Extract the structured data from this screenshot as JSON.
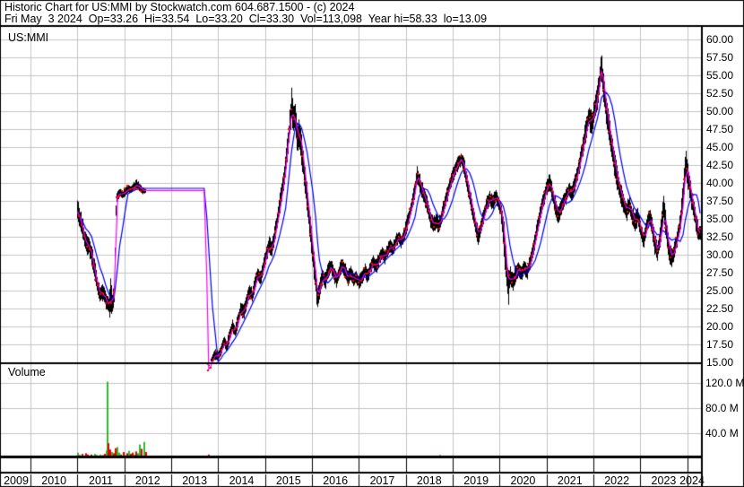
{
  "header": {
    "title_line": "Historic Chart for US:MMI by Stockwatch.com 604.687.1500 - (c) 2024",
    "quote_line": "Fri May  3 2024  Op=33.26  Hi=33.54  Lo=33.20  Cl=33.30  Vol=113,098  Year hi=58.33  lo=13.09"
  },
  "price_panel": {
    "label": "US:MMI"
  },
  "volume_panel": {
    "label": "Volume"
  },
  "colors": {
    "bar": "#000000",
    "ma_fast": "#ff00ff",
    "ma_slow": "#0000ee",
    "dot": "#ff0000",
    "vol_up": "#2db92d",
    "vol_down": "#e60000",
    "grid": "#c4c4c4",
    "border": "#000000",
    "background": "#ffffff"
  },
  "chart_data": {
    "type": "ohlc-line-volume",
    "title": "US:MMI",
    "price_axis_labels": [
      "60.00",
      "57.50",
      "55.00",
      "52.50",
      "50.00",
      "47.50",
      "45.00",
      "42.50",
      "40.00",
      "37.50",
      "35.00",
      "32.50",
      "30.00",
      "27.50",
      "25.00",
      "22.50",
      "20.00",
      "17.50",
      "15.00"
    ],
    "volume_axis_labels": [
      "120.0 M",
      "80.0 M",
      "40.0 M"
    ],
    "x_axis_labels": [
      "2009",
      "2010",
      "2011",
      "2012",
      "2013",
      "2014",
      "2015",
      "2016",
      "2017",
      "2018",
      "2019",
      "2020",
      "2021",
      "2022",
      "2023",
      "2024"
    ],
    "price_ylim": [
      15,
      60
    ],
    "volume_ylim_M": [
      0,
      140
    ],
    "ma_fast_window": 2,
    "ma_slow_window": 6,
    "price_points": [
      [
        2011.0,
        36.0,
        37.8,
        34.5
      ],
      [
        2011.06,
        34.5,
        36.5,
        33.5
      ],
      [
        2011.12,
        33.0,
        34.8,
        31.8
      ],
      [
        2011.18,
        31.0,
        33.2,
        30.0
      ],
      [
        2011.24,
        31.5,
        32.5,
        29.8
      ],
      [
        2011.3,
        29.5,
        31.5,
        28.5
      ],
      [
        2011.36,
        27.5,
        29.5,
        26.3
      ],
      [
        2011.42,
        25.5,
        27.2,
        24.3
      ],
      [
        2011.48,
        24.3,
        25.8,
        23.2
      ],
      [
        2011.54,
        24.8,
        26.0,
        23.5
      ],
      [
        2011.6,
        23.5,
        24.8,
        22.4
      ],
      [
        2011.66,
        22.8,
        24.2,
        21.6
      ],
      [
        2011.7,
        24.0,
        27.4,
        20.6
      ],
      [
        2011.74,
        23.2,
        24.6,
        22.0
      ],
      [
        2011.78,
        25.0,
        26.2,
        22.8
      ],
      [
        2011.82,
        37.8,
        38.6,
        36.8
      ],
      [
        2011.86,
        38.3,
        39.0,
        37.6
      ],
      [
        2011.9,
        38.6,
        39.2,
        38.0
      ],
      [
        2011.96,
        38.4,
        39.0,
        37.8
      ],
      [
        2012.02,
        38.8,
        39.5,
        38.2
      ],
      [
        2012.08,
        39.2,
        39.8,
        38.6
      ],
      [
        2012.14,
        39.0,
        39.6,
        38.4
      ],
      [
        2012.2,
        39.5,
        40.2,
        38.9
      ],
      [
        2012.26,
        39.8,
        40.6,
        39.2
      ],
      [
        2012.32,
        39.3,
        40.0,
        38.7
      ],
      [
        2012.38,
        39.0,
        39.5,
        38.4
      ],
      [
        2012.44,
        38.9,
        39.3,
        38.5
      ],
      [
        2013.76,
        14.2,
        15.0,
        13.7
      ],
      [
        2013.8,
        13.9,
        14.6,
        13.1
      ],
      [
        2013.84,
        14.8,
        15.5,
        13.9
      ],
      [
        2013.88,
        15.5,
        16.3,
        14.6
      ],
      [
        2013.94,
        16.2,
        17.0,
        15.3
      ],
      [
        2014.0,
        15.8,
        16.6,
        15.0
      ],
      [
        2014.06,
        16.8,
        17.6,
        16.0
      ],
      [
        2014.12,
        17.8,
        18.8,
        17.0
      ],
      [
        2014.18,
        17.2,
        18.2,
        16.4
      ],
      [
        2014.24,
        18.8,
        19.8,
        17.8
      ],
      [
        2014.3,
        20.0,
        21.0,
        19.0
      ],
      [
        2014.36,
        19.2,
        20.4,
        18.4
      ],
      [
        2014.42,
        21.0,
        22.0,
        20.0
      ],
      [
        2014.48,
        22.5,
        23.5,
        21.4
      ],
      [
        2014.54,
        21.8,
        23.0,
        20.8
      ],
      [
        2014.6,
        23.5,
        24.5,
        22.4
      ],
      [
        2014.66,
        25.0,
        26.0,
        23.8
      ],
      [
        2014.72,
        24.2,
        25.4,
        23.2
      ],
      [
        2014.78,
        26.0,
        27.2,
        24.9
      ],
      [
        2014.84,
        27.5,
        28.5,
        26.3
      ],
      [
        2014.9,
        26.5,
        27.8,
        25.5
      ],
      [
        2014.96,
        28.5,
        29.5,
        27.3
      ],
      [
        2015.02,
        30.0,
        31.2,
        28.8
      ],
      [
        2015.08,
        31.5,
        32.8,
        30.2
      ],
      [
        2015.14,
        30.5,
        32.0,
        29.4
      ],
      [
        2015.2,
        33.0,
        34.2,
        31.6
      ],
      [
        2015.26,
        35.0,
        36.5,
        33.6
      ],
      [
        2015.32,
        37.5,
        39.0,
        36.0
      ],
      [
        2015.38,
        40.0,
        41.5,
        38.4
      ],
      [
        2015.44,
        43.0,
        44.8,
        41.2
      ],
      [
        2015.48,
        45.5,
        47.0,
        43.5
      ],
      [
        2015.52,
        48.0,
        50.0,
        46.0
      ],
      [
        2015.56,
        50.5,
        53.9,
        48.5
      ],
      [
        2015.6,
        48.5,
        51.0,
        46.5
      ],
      [
        2015.64,
        49.5,
        51.5,
        47.2
      ],
      [
        2015.68,
        46.0,
        48.5,
        44.0
      ],
      [
        2015.72,
        47.5,
        49.0,
        45.0
      ],
      [
        2015.78,
        44.0,
        46.5,
        42.0
      ],
      [
        2015.84,
        41.0,
        43.0,
        38.5
      ],
      [
        2015.9,
        37.0,
        39.5,
        35.0
      ],
      [
        2015.96,
        33.5,
        35.5,
        31.5
      ],
      [
        2016.02,
        29.5,
        31.5,
        27.5
      ],
      [
        2016.08,
        26.0,
        28.0,
        24.0
      ],
      [
        2016.12,
        24.0,
        25.5,
        21.5
      ],
      [
        2016.16,
        25.5,
        26.8,
        23.8
      ],
      [
        2016.22,
        27.0,
        28.2,
        25.8
      ],
      [
        2016.28,
        26.2,
        27.5,
        25.0
      ],
      [
        2016.34,
        27.8,
        29.0,
        26.6
      ],
      [
        2016.4,
        28.5,
        29.6,
        27.3
      ],
      [
        2016.46,
        27.2,
        28.6,
        26.0
      ],
      [
        2016.52,
        26.5,
        27.8,
        25.3
      ],
      [
        2016.58,
        27.8,
        28.8,
        26.6
      ],
      [
        2016.64,
        28.8,
        30.0,
        27.6
      ],
      [
        2016.7,
        27.5,
        29.0,
        26.4
      ],
      [
        2016.76,
        26.5,
        27.8,
        25.4
      ],
      [
        2016.82,
        27.5,
        28.6,
        26.4
      ],
      [
        2016.88,
        26.3,
        27.6,
        25.2
      ],
      [
        2016.94,
        27.0,
        28.0,
        25.9
      ],
      [
        2017.0,
        26.0,
        27.2,
        24.9
      ],
      [
        2017.06,
        26.8,
        27.9,
        25.7
      ],
      [
        2017.12,
        27.8,
        28.9,
        26.7
      ],
      [
        2017.18,
        27.0,
        28.2,
        25.9
      ],
      [
        2017.24,
        28.2,
        29.3,
        27.1
      ],
      [
        2017.3,
        29.0,
        30.1,
        27.9
      ],
      [
        2017.36,
        28.2,
        29.4,
        27.1
      ],
      [
        2017.42,
        29.3,
        30.4,
        28.2
      ],
      [
        2017.48,
        30.2,
        31.3,
        29.1
      ],
      [
        2017.54,
        29.5,
        30.7,
        28.4
      ],
      [
        2017.6,
        30.5,
        31.6,
        29.4
      ],
      [
        2017.66,
        31.3,
        32.4,
        30.2
      ],
      [
        2017.72,
        30.7,
        31.9,
        29.6
      ],
      [
        2017.78,
        31.8,
        32.9,
        30.7
      ],
      [
        2017.84,
        32.5,
        33.6,
        31.4
      ],
      [
        2017.9,
        31.8,
        33.0,
        30.7
      ],
      [
        2017.96,
        33.0,
        34.0,
        31.9
      ],
      [
        2018.02,
        34.2,
        35.4,
        33.0
      ],
      [
        2018.08,
        35.8,
        37.0,
        34.6
      ],
      [
        2018.14,
        37.5,
        38.8,
        36.2
      ],
      [
        2018.2,
        39.5,
        40.8,
        38.2
      ],
      [
        2018.24,
        41.2,
        42.6,
        39.8
      ],
      [
        2018.28,
        40.2,
        41.6,
        38.9
      ],
      [
        2018.34,
        39.0,
        40.4,
        37.7
      ],
      [
        2018.4,
        37.8,
        39.2,
        36.5
      ],
      [
        2018.46,
        36.5,
        38.0,
        35.2
      ],
      [
        2018.52,
        35.0,
        36.5,
        33.7
      ],
      [
        2018.58,
        34.0,
        35.4,
        32.8
      ],
      [
        2018.64,
        34.8,
        36.0,
        33.2
      ],
      [
        2018.7,
        33.8,
        35.2,
        33.0
      ],
      [
        2018.76,
        35.5,
        36.8,
        34.2
      ],
      [
        2018.82,
        37.0,
        38.2,
        35.8
      ],
      [
        2018.88,
        38.5,
        39.8,
        37.2
      ],
      [
        2018.94,
        40.0,
        41.2,
        38.8
      ],
      [
        2019.0,
        41.2,
        42.4,
        40.0
      ],
      [
        2019.06,
        42.0,
        43.2,
        40.8
      ],
      [
        2019.12,
        43.0,
        44.0,
        41.8
      ],
      [
        2019.18,
        43.5,
        44.5,
        42.3
      ],
      [
        2019.24,
        42.0,
        43.5,
        40.8
      ],
      [
        2019.3,
        40.0,
        41.5,
        38.8
      ],
      [
        2019.36,
        38.0,
        39.5,
        36.8
      ],
      [
        2019.42,
        36.0,
        37.5,
        34.8
      ],
      [
        2019.48,
        34.0,
        35.5,
        32.8
      ],
      [
        2019.54,
        32.5,
        34.0,
        31.1
      ],
      [
        2019.6,
        34.0,
        35.2,
        32.7
      ],
      [
        2019.66,
        35.5,
        36.8,
        34.2
      ],
      [
        2019.72,
        37.0,
        38.2,
        35.8
      ],
      [
        2019.78,
        38.0,
        39.0,
        36.8
      ],
      [
        2019.84,
        37.2,
        38.5,
        36.0
      ],
      [
        2019.9,
        38.3,
        39.2,
        37.1
      ],
      [
        2019.96,
        37.5,
        38.6,
        36.3
      ],
      [
        2020.02,
        36.5,
        37.8,
        35.2
      ],
      [
        2020.08,
        33.0,
        35.5,
        30.5
      ],
      [
        2020.14,
        28.0,
        30.5,
        24.3
      ],
      [
        2020.18,
        26.0,
        28.0,
        22.4
      ],
      [
        2020.22,
        27.2,
        28.6,
        25.4
      ],
      [
        2020.28,
        26.0,
        27.5,
        24.8
      ],
      [
        2020.34,
        27.5,
        28.8,
        26.2
      ],
      [
        2020.4,
        28.3,
        29.4,
        27.0
      ],
      [
        2020.46,
        27.2,
        28.5,
        26.0
      ],
      [
        2020.52,
        28.5,
        29.6,
        27.2
      ],
      [
        2020.58,
        27.6,
        28.8,
        26.4
      ],
      [
        2020.64,
        29.0,
        30.2,
        27.8
      ],
      [
        2020.7,
        30.5,
        31.8,
        29.2
      ],
      [
        2020.76,
        32.5,
        33.8,
        31.2
      ],
      [
        2020.82,
        34.5,
        35.8,
        33.2
      ],
      [
        2020.88,
        36.5,
        37.8,
        35.2
      ],
      [
        2020.94,
        38.0,
        39.3,
        36.7
      ],
      [
        2021.0,
        39.5,
        40.8,
        38.2
      ],
      [
        2021.06,
        40.2,
        41.4,
        38.9
      ],
      [
        2021.12,
        38.5,
        40.0,
        37.2
      ],
      [
        2021.18,
        36.8,
        38.2,
        35.5
      ],
      [
        2021.24,
        35.5,
        36.8,
        34.2
      ],
      [
        2021.3,
        36.5,
        37.6,
        35.2
      ],
      [
        2021.36,
        37.5,
        38.6,
        36.2
      ],
      [
        2021.42,
        38.3,
        39.4,
        37.0
      ],
      [
        2021.48,
        39.2,
        40.3,
        38.0
      ],
      [
        2021.54,
        38.5,
        39.8,
        37.3
      ],
      [
        2021.6,
        40.0,
        41.2,
        38.8
      ],
      [
        2021.66,
        41.5,
        42.8,
        40.2
      ],
      [
        2021.72,
        43.5,
        45.0,
        42.0
      ],
      [
        2021.78,
        45.5,
        47.0,
        43.8
      ],
      [
        2021.84,
        47.5,
        49.2,
        45.8
      ],
      [
        2021.9,
        49.5,
        51.2,
        47.5
      ],
      [
        2021.96,
        48.0,
        50.0,
        46.2
      ],
      [
        2022.02,
        50.5,
        52.2,
        48.5
      ],
      [
        2022.08,
        52.0,
        53.8,
        50.2
      ],
      [
        2022.13,
        54.5,
        56.5,
        52.5
      ],
      [
        2022.17,
        56.5,
        58.3,
        54.0
      ],
      [
        2022.22,
        52.5,
        55.0,
        50.5
      ],
      [
        2022.28,
        49.5,
        51.8,
        47.5
      ],
      [
        2022.34,
        47.0,
        49.0,
        45.0
      ],
      [
        2022.4,
        44.5,
        46.8,
        42.5
      ],
      [
        2022.46,
        42.0,
        44.0,
        40.0
      ],
      [
        2022.52,
        40.0,
        42.0,
        38.2
      ],
      [
        2022.58,
        38.5,
        40.2,
        36.8
      ],
      [
        2022.64,
        37.2,
        38.8,
        35.6
      ],
      [
        2022.7,
        36.0,
        37.5,
        34.5
      ],
      [
        2022.76,
        37.0,
        38.4,
        35.6
      ],
      [
        2022.82,
        35.5,
        37.0,
        34.1
      ],
      [
        2022.88,
        34.5,
        36.0,
        33.1
      ],
      [
        2022.94,
        35.3,
        36.6,
        34.0
      ],
      [
        2023.0,
        33.5,
        35.0,
        32.1
      ],
      [
        2023.06,
        32.0,
        33.5,
        30.6
      ],
      [
        2023.12,
        33.5,
        34.8,
        32.2
      ],
      [
        2023.18,
        35.5,
        36.8,
        34.1
      ],
      [
        2023.24,
        34.0,
        35.5,
        32.6
      ],
      [
        2023.3,
        31.5,
        33.2,
        30.0
      ],
      [
        2023.36,
        30.2,
        31.8,
        29.0
      ],
      [
        2023.42,
        32.5,
        34.5,
        31.0
      ],
      [
        2023.49,
        36.5,
        39.0,
        34.5
      ],
      [
        2023.55,
        33.0,
        35.0,
        31.5
      ],
      [
        2023.61,
        30.5,
        32.0,
        28.8
      ],
      [
        2023.67,
        29.5,
        31.0,
        28.0
      ],
      [
        2023.73,
        31.0,
        32.4,
        29.6
      ],
      [
        2023.79,
        32.5,
        34.0,
        31.1
      ],
      [
        2023.85,
        34.5,
        36.2,
        33.1
      ],
      [
        2023.91,
        38.5,
        41.0,
        36.5
      ],
      [
        2023.96,
        43.0,
        45.2,
        40.5
      ],
      [
        2024.02,
        40.5,
        42.5,
        38.6
      ],
      [
        2024.08,
        38.0,
        39.8,
        36.4
      ],
      [
        2024.14,
        36.0,
        37.6,
        34.5
      ],
      [
        2024.2,
        34.0,
        35.6,
        32.5
      ],
      [
        2024.24,
        32.8,
        34.2,
        31.4
      ],
      [
        2024.28,
        33.3,
        34.4,
        32.0
      ]
    ],
    "volume_points": [
      [
        2011.0,
        9,
        "g"
      ],
      [
        2011.04,
        5,
        "r"
      ],
      [
        2011.08,
        7,
        "r"
      ],
      [
        2011.12,
        4,
        "g"
      ],
      [
        2011.16,
        8,
        "r"
      ],
      [
        2011.2,
        6,
        "r"
      ],
      [
        2011.24,
        3,
        "g"
      ],
      [
        2011.28,
        6,
        "r"
      ],
      [
        2011.32,
        4,
        "r"
      ],
      [
        2011.36,
        7,
        "g"
      ],
      [
        2011.4,
        5,
        "r"
      ],
      [
        2011.44,
        4,
        "r"
      ],
      [
        2011.48,
        6,
        "g"
      ],
      [
        2011.52,
        5,
        "r"
      ],
      [
        2011.56,
        7,
        "r"
      ],
      [
        2011.6,
        12,
        "g"
      ],
      [
        2011.62,
        122,
        "g"
      ],
      [
        2011.65,
        24,
        "r"
      ],
      [
        2011.68,
        14,
        "r"
      ],
      [
        2011.72,
        10,
        "g"
      ],
      [
        2011.76,
        8,
        "r"
      ],
      [
        2011.8,
        16,
        "r"
      ],
      [
        2011.84,
        18,
        "g"
      ],
      [
        2011.88,
        9,
        "g"
      ],
      [
        2011.92,
        6,
        "r"
      ],
      [
        2011.96,
        10,
        "r"
      ],
      [
        2012.0,
        5,
        "g"
      ],
      [
        2012.04,
        8,
        "r"
      ],
      [
        2012.08,
        12,
        "g"
      ],
      [
        2012.12,
        7,
        "r"
      ],
      [
        2012.16,
        9,
        "r"
      ],
      [
        2012.2,
        6,
        "g"
      ],
      [
        2012.24,
        11,
        "r"
      ],
      [
        2012.28,
        8,
        "g"
      ],
      [
        2012.32,
        22,
        "g"
      ],
      [
        2012.36,
        15,
        "r"
      ],
      [
        2012.4,
        26,
        "g"
      ],
      [
        2012.44,
        10,
        "r"
      ],
      [
        2013.78,
        6,
        "r"
      ],
      [
        2018.72,
        5,
        "r"
      ]
    ]
  }
}
